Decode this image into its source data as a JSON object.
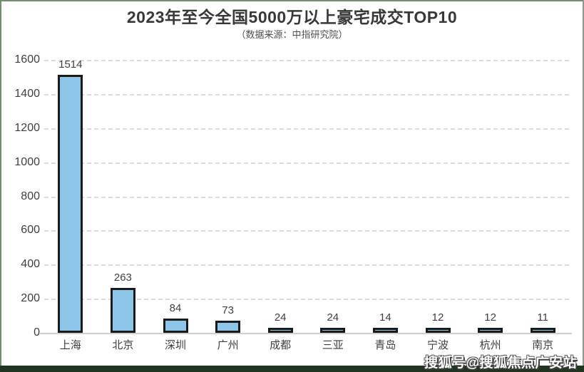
{
  "header": {
    "title": "2023年至今全国5000万以上豪宅成交TOP10",
    "subtitle": "（数据来源：中指研究院）"
  },
  "watermark": {
    "text": "搜狐号@搜狐焦点广安站"
  },
  "colors": {
    "bar_fill": "#8DC6E8",
    "bar_border": "#1a1a1a",
    "gridline": "#dcdcdc",
    "frame_green": "#6f8f6e",
    "bottom_band": "#20341f"
  },
  "chart_data": {
    "type": "bar",
    "title": "2023年至今全国5000万以上豪宅成交TOP10",
    "subtitle": "（数据来源：中指研究院）",
    "categories": [
      "上海",
      "北京",
      "深圳",
      "广州",
      "成都",
      "三亚",
      "青岛",
      "宁波",
      "杭州",
      "南京"
    ],
    "values": [
      1514,
      263,
      84,
      73,
      24,
      24,
      14,
      12,
      12,
      11
    ],
    "xlabel": "",
    "ylabel": "",
    "ylim": [
      0,
      1600
    ],
    "ytick_step": 200,
    "yticks": [
      0,
      200,
      400,
      600,
      800,
      1000,
      1200,
      1400,
      1600
    ],
    "grid": "horizontal-dashed",
    "legend": "none",
    "data_labels": true
  }
}
